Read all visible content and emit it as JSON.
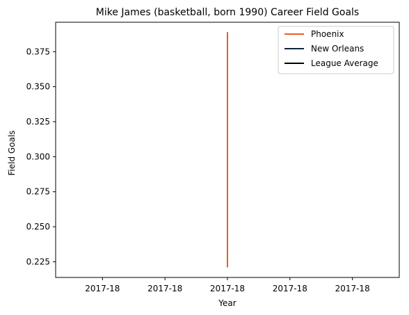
{
  "chart_data": {
    "type": "line",
    "title": "Mike James (basketball, born 1990) Career Field Goals",
    "xlabel": "Year",
    "ylabel": "Field Goals",
    "x_tick_labels": [
      "2017-18",
      "2017-18",
      "2017-18",
      "2017-18",
      "2017-18"
    ],
    "y_ticks": [
      0.225,
      0.25,
      0.275,
      0.3,
      0.325,
      0.35,
      0.375
    ],
    "y_tick_labels": [
      "0.225",
      "0.250",
      "0.275",
      "0.300",
      "0.325",
      "0.350",
      "0.375"
    ],
    "xlim": [
      -0.055,
      0.055
    ],
    "ylim": [
      0.2138,
      0.396
    ],
    "grid": false,
    "legend_position": "top-right",
    "series": [
      {
        "name": "Phoenix",
        "color": "#E56020",
        "x": [
          0,
          0
        ],
        "y": [
          0.221,
          0.389
        ]
      },
      {
        "name": "New Orleans",
        "color": "#0C2340",
        "x": [],
        "y": []
      },
      {
        "name": "League Average",
        "color": "#000000",
        "x": [],
        "y": []
      }
    ]
  }
}
